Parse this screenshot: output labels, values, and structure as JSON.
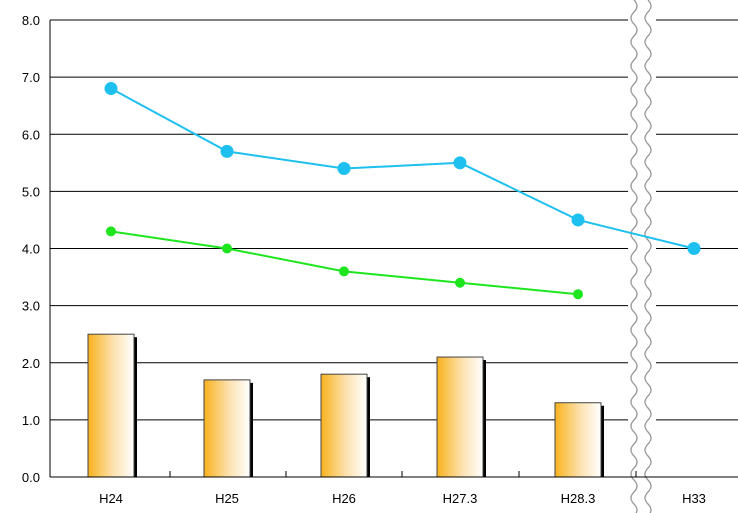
{
  "chart_data": {
    "type": "bar",
    "categories": [
      "H24",
      "H25",
      "H26",
      "H27.3",
      "H28.3",
      "H33"
    ],
    "ylim": [
      0,
      8
    ],
    "yticks": [
      "0.0",
      "1.0",
      "2.0",
      "3.0",
      "4.0",
      "5.0",
      "6.0",
      "7.0",
      "8.0"
    ],
    "axis_break": "between H28.3 and H33",
    "grid": true,
    "series": [
      {
        "type": "bar",
        "values": [
          2.5,
          1.7,
          1.8,
          2.1,
          1.3,
          null
        ],
        "color": "#f9b21d"
      },
      {
        "type": "line",
        "values": [
          6.8,
          5.7,
          5.4,
          5.5,
          4.5,
          4.0
        ],
        "color": "#1ec0ef"
      },
      {
        "type": "line",
        "values": [
          4.3,
          4.0,
          3.6,
          3.4,
          3.2,
          null
        ],
        "color": "#1ee61e"
      }
    ]
  }
}
